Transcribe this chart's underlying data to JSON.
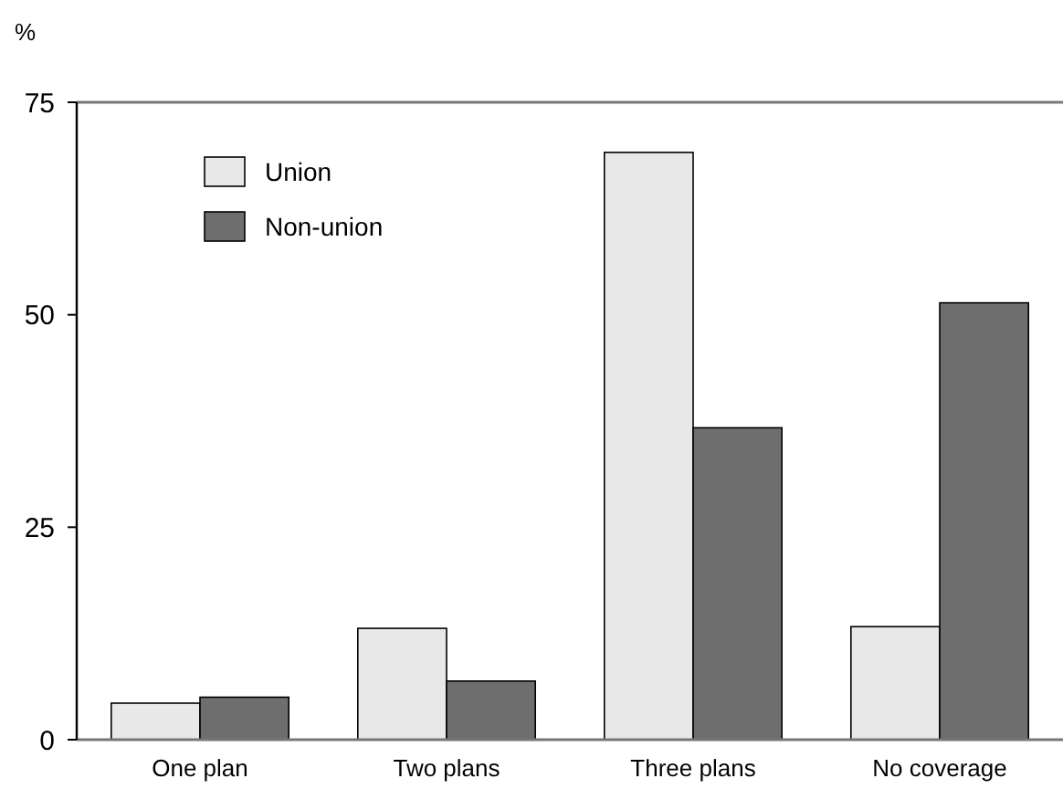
{
  "chart_data": {
    "type": "bar",
    "ylabel": "%",
    "categories": [
      "One plan",
      "Two plans",
      "Three plans",
      "No coverage"
    ],
    "series": [
      {
        "name": "Union",
        "color": "#e8e8e8",
        "values": [
          4.3,
          13.1,
          69.1,
          13.3
        ]
      },
      {
        "name": "Non-union",
        "color": "#6e6e6e",
        "values": [
          5.0,
          6.9,
          36.7,
          51.4
        ]
      }
    ],
    "ylim": [
      0,
      75
    ],
    "yticks": [
      0,
      25,
      50,
      75
    ],
    "grid": false,
    "legend": "top left"
  }
}
